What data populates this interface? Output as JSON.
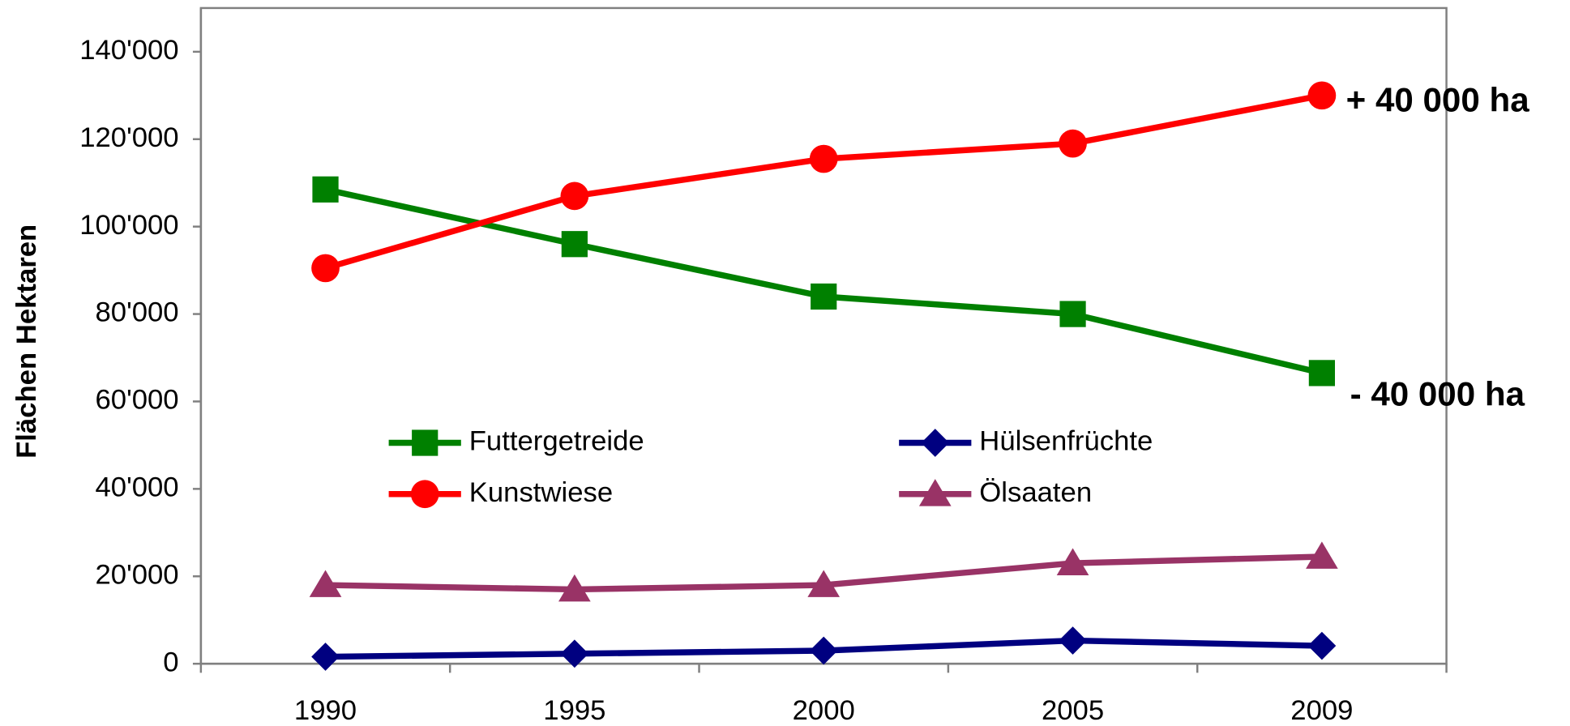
{
  "chart_data": {
    "type": "line",
    "y_label": "Flächen Hektaren",
    "categories": [
      "1990",
      "1995",
      "2000",
      "2005",
      "2009"
    ],
    "ylim": [
      0,
      150000
    ],
    "yticks": [
      0,
      {
        "value": 20000,
        "label": "20'000"
      },
      {
        "value": 40000,
        "label": "40'000"
      },
      {
        "value": 60000,
        "label": "60'000"
      },
      {
        "value": 80000,
        "label": "80'000"
      },
      {
        "value": 100000,
        "label": "100'000"
      },
      {
        "value": 120000,
        "label": "120'000"
      },
      {
        "value": 140000,
        "label": "140'000"
      }
    ],
    "grid": false,
    "series": [
      {
        "name": "Futtergetreide",
        "color": "#008000",
        "marker": "square",
        "values": [
          108500,
          96000,
          84000,
          80000,
          66500
        ]
      },
      {
        "name": "Hülsenfrüchte",
        "color": "#000080",
        "marker": "diamond",
        "values": [
          1600,
          2300,
          3000,
          5300,
          4100
        ]
      },
      {
        "name": "Kunstwiese",
        "color": "#ff0000",
        "marker": "circle",
        "values": [
          90500,
          107000,
          115500,
          119000,
          130000
        ]
      },
      {
        "name": "Ölsaaten",
        "color": "#993366",
        "marker": "triangle",
        "values": [
          18000,
          17000,
          18000,
          23000,
          24500
        ]
      }
    ],
    "annotations": [
      "+ 40 000 ha",
      "- 40 000 ha"
    ]
  }
}
